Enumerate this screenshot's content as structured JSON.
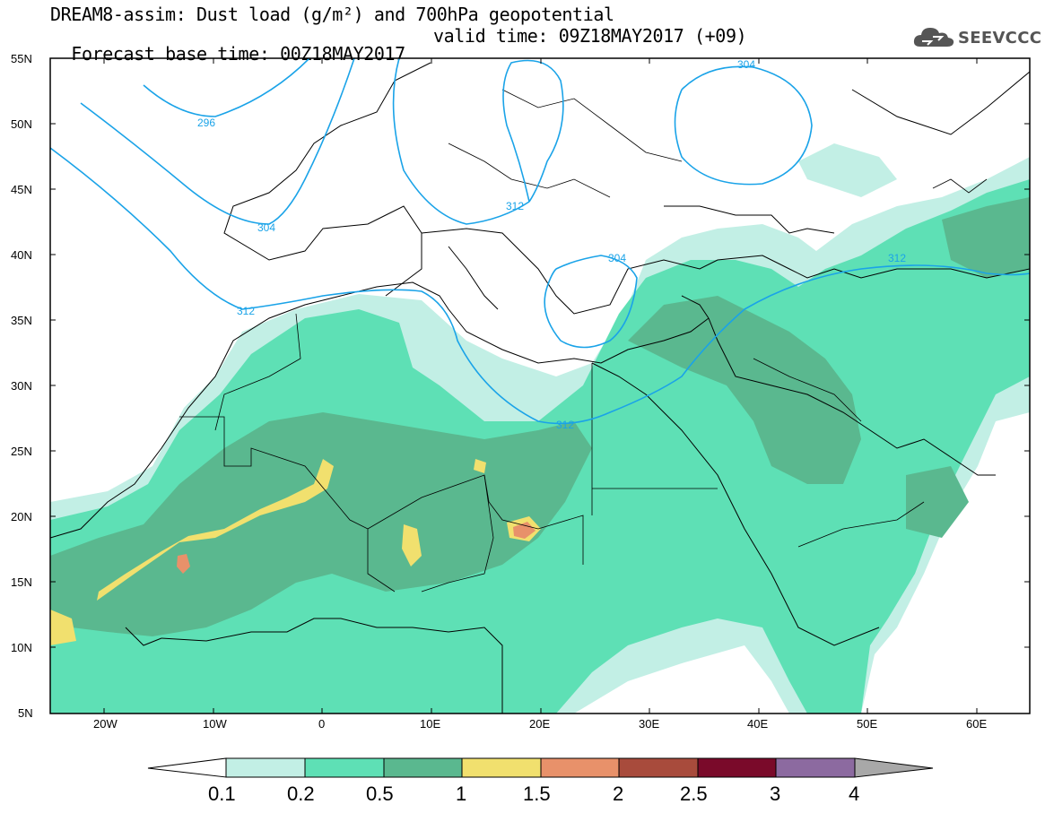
{
  "title": {
    "line1": "DREAM8-assim: Dust load (g/m²) and 700hPa geopotential",
    "base_time": "Forecast base time: 00Z18MAY2017",
    "valid_time": "valid time: 09Z18MAY2017 (+09)"
  },
  "logo": {
    "text": "SEEVCCC",
    "icon": "cloud-icon"
  },
  "axes": {
    "lat_labels": [
      "55N",
      "50N",
      "45N",
      "40N",
      "35N",
      "30N",
      "25N",
      "20N",
      "15N",
      "10N",
      "5N"
    ],
    "lon_labels": [
      "20W",
      "10W",
      "0",
      "10E",
      "20E",
      "30E",
      "40E",
      "50E",
      "60E"
    ]
  },
  "contours": {
    "color": "#1aa3e8",
    "labels": [
      "296",
      "304",
      "312",
      "312",
      "304",
      "312",
      "312",
      "304"
    ]
  },
  "colorbar": {
    "labels": [
      "0.1",
      "0.2",
      "0.5",
      "1",
      "1.5",
      "2",
      "2.5",
      "3",
      "4"
    ],
    "colors": [
      "#ffffff",
      "#c2efe5",
      "#5ee0b5",
      "#5ab88f",
      "#f1e06e",
      "#e8916a",
      "#a84b3c",
      "#7a0a2a",
      "#8c6aa0",
      "#a8a8a8"
    ]
  },
  "dust_colors": {
    "level_0_1": "#c2efe5",
    "level_0_2": "#5ee0b5",
    "level_0_5": "#5ab88f",
    "level_1": "#f1e06e",
    "level_1_5": "#e8916a",
    "level_2": "#a84b3c"
  }
}
